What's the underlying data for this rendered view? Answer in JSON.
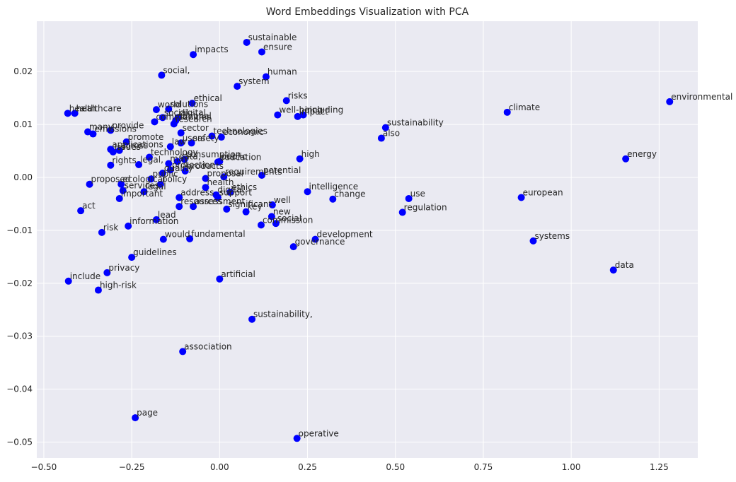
{
  "chart_data": {
    "type": "scatter",
    "title": "Word Embeddings Visualization with PCA",
    "xlabel": "",
    "ylabel": "",
    "xlim": [
      -0.52,
      1.36
    ],
    "ylim": [
      -0.053,
      0.0295
    ],
    "x_ticks": [
      {
        "value": -0.5,
        "label": "−0.50"
      },
      {
        "value": -0.25,
        "label": "−0.25"
      },
      {
        "value": 0.0,
        "label": "0.00"
      },
      {
        "value": 0.25,
        "label": "0.25"
      },
      {
        "value": 0.5,
        "label": "0.50"
      },
      {
        "value": 0.75,
        "label": "0.75"
      },
      {
        "value": 1.0,
        "label": "1.00"
      },
      {
        "value": 1.25,
        "label": "1.25"
      }
    ],
    "y_ticks": [
      {
        "value": 0.02,
        "label": "0.02"
      },
      {
        "value": 0.01,
        "label": "0.01"
      },
      {
        "value": 0.0,
        "label": "0.00"
      },
      {
        "value": -0.01,
        "label": "−0.01"
      },
      {
        "value": -0.02,
        "label": "−0.02"
      },
      {
        "value": -0.03,
        "label": "−0.03"
      },
      {
        "value": -0.04,
        "label": "−0.04"
      },
      {
        "value": -0.05,
        "label": "−0.05"
      }
    ],
    "grid": true,
    "colors": {
      "background": "#eaeaf2",
      "grid": "#ffffff",
      "point": "#0000ff",
      "text": "#262626"
    },
    "points": [
      {
        "label": "sustainable",
        "x": 0.077,
        "y": 0.0255
      },
      {
        "label": "ensure",
        "x": 0.12,
        "y": 0.0237
      },
      {
        "label": "impacts",
        "x": -0.075,
        "y": 0.0232
      },
      {
        "label": "social,",
        "x": -0.165,
        "y": 0.0193
      },
      {
        "label": "human",
        "x": 0.132,
        "y": 0.019
      },
      {
        "label": "system",
        "x": 0.05,
        "y": 0.0172
      },
      {
        "label": "risks",
        "x": 0.19,
        "y": 0.0145
      },
      {
        "label": "ethical",
        "x": -0.078,
        "y": 0.014
      },
      {
        "label": "environmental",
        "x": 1.28,
        "y": 0.0143
      },
      {
        "label": "climate",
        "x": 0.818,
        "y": 0.0123
      },
      {
        "label": "health",
        "x": -0.432,
        "y": 0.0121
      },
      {
        "label": "healthcare",
        "x": -0.412,
        "y": 0.0121
      },
      {
        "label": "world",
        "x": -0.18,
        "y": 0.0128
      },
      {
        "label": "solutions",
        "x": -0.145,
        "y": 0.0129
      },
      {
        "label": "well-being",
        "x": 0.165,
        "y": 0.0118
      },
      {
        "label": "impact",
        "x": 0.222,
        "y": 0.0115
      },
      {
        "label": "including",
        "x": 0.238,
        "y": 0.0118
      },
      {
        "label": "social",
        "x": -0.162,
        "y": 0.0113
      },
      {
        "label": "digital",
        "x": -0.118,
        "y": 0.0113
      },
      {
        "label": "national",
        "x": -0.125,
        "y": 0.0107
      },
      {
        "label": "communities",
        "x": -0.185,
        "y": 0.0105
      },
      {
        "label": "research",
        "x": -0.13,
        "y": 0.0101
      },
      {
        "label": "sustainability",
        "x": 0.472,
        "y": 0.0094
      },
      {
        "label": "sector",
        "x": -0.11,
        "y": 0.0084
      },
      {
        "label": "many",
        "x": -0.375,
        "y": 0.0086
      },
      {
        "label": "emissions",
        "x": -0.36,
        "y": 0.0082
      },
      {
        "label": "provide",
        "x": -0.31,
        "y": 0.0089
      },
      {
        "label": "technologies",
        "x": -0.022,
        "y": 0.0078
      },
      {
        "label": "economic",
        "x": 0.005,
        "y": 0.0076
      },
      {
        "label": "also",
        "x": 0.46,
        "y": 0.0074
      },
      {
        "label": "promote",
        "x": -0.265,
        "y": 0.0067
      },
      {
        "label": "users",
        "x": -0.11,
        "y": 0.0065
      },
      {
        "label": "safety",
        "x": -0.08,
        "y": 0.0065
      },
      {
        "label": "law",
        "x": -0.14,
        "y": 0.0058
      },
      {
        "label": "applications",
        "x": -0.31,
        "y": 0.0053
      },
      {
        "label": "across",
        "x": -0.285,
        "y": 0.0051
      },
      {
        "label": "issues",
        "x": -0.303,
        "y": 0.0048
      },
      {
        "label": "technology",
        "x": -0.2,
        "y": 0.0038
      },
      {
        "label": "consumption",
        "x": -0.1,
        "y": 0.0034
      },
      {
        "label": "energy",
        "x": 1.155,
        "y": 0.0035
      },
      {
        "label": "high",
        "x": 0.228,
        "y": 0.0035
      },
      {
        "label": "education",
        "x": -0.005,
        "y": 0.0029
      },
      {
        "label": "public",
        "x": 0.0,
        "y": 0.003
      },
      {
        "label": "rights",
        "x": -0.31,
        "y": 0.0023
      },
      {
        "label": "legal,",
        "x": -0.23,
        "y": 0.0024
      },
      {
        "label": "data,",
        "x": -0.12,
        "y": 0.003
      },
      {
        "label": "may",
        "x": -0.145,
        "y": 0.0026
      },
      {
        "label": "protection",
        "x": -0.14,
        "y": 0.0014
      },
      {
        "label": "products",
        "x": -0.098,
        "y": 0.0012
      },
      {
        "label": "quality",
        "x": -0.162,
        "y": 0.0008
      },
      {
        "label": "potential",
        "x": 0.12,
        "y": 0.0004
      },
      {
        "label": "requirements",
        "x": 0.012,
        "y": 0.0001
      },
      {
        "label": "proposal",
        "x": -0.04,
        "y": -0.0002
      },
      {
        "label": "public",
        "x": -0.195,
        "y": -0.0003
      },
      {
        "label": "proposed",
        "x": -0.37,
        "y": -0.0013
      },
      {
        "label": "ecological",
        "x": -0.28,
        "y": -0.0013
      },
      {
        "label": "policy",
        "x": -0.168,
        "y": -0.0013
      },
      {
        "label": "health",
        "x": -0.04,
        "y": -0.0019
      },
      {
        "label": "services",
        "x": -0.275,
        "y": -0.0025
      },
      {
        "label": "legal",
        "x": -0.215,
        "y": -0.0027
      },
      {
        "label": "intelligence",
        "x": 0.25,
        "y": -0.0027
      },
      {
        "label": "ethics",
        "x": 0.03,
        "y": -0.0028
      },
      {
        "label": "digital",
        "x": -0.01,
        "y": -0.0033
      },
      {
        "label": "support",
        "x": -0.005,
        "y": -0.0038
      },
      {
        "label": "important",
        "x": -0.285,
        "y": -0.004
      },
      {
        "label": "address",
        "x": -0.115,
        "y": -0.0038
      },
      {
        "label": "change",
        "x": 0.322,
        "y": -0.0041
      },
      {
        "label": "use",
        "x": 0.538,
        "y": -0.004
      },
      {
        "label": "european",
        "x": 0.858,
        "y": -0.0038
      },
      {
        "label": "well",
        "x": 0.15,
        "y": -0.0052
      },
      {
        "label": "resources",
        "x": -0.115,
        "y": -0.0055
      },
      {
        "label": "assessment",
        "x": -0.075,
        "y": -0.0055
      },
      {
        "label": "significant",
        "x": 0.02,
        "y": -0.006
      },
      {
        "label": "key",
        "x": 0.075,
        "y": -0.0065
      },
      {
        "label": "act",
        "x": -0.395,
        "y": -0.0063
      },
      {
        "label": "regulation",
        "x": 0.52,
        "y": -0.0066
      },
      {
        "label": "new",
        "x": 0.148,
        "y": -0.0074
      },
      {
        "label": "lead",
        "x": -0.18,
        "y": -0.008
      },
      {
        "label": "social",
        "x": 0.16,
        "y": -0.0087
      },
      {
        "label": "commission",
        "x": 0.118,
        "y": -0.009
      },
      {
        "label": "information",
        "x": -0.26,
        "y": -0.0092
      },
      {
        "label": "risk",
        "x": -0.335,
        "y": -0.0104
      },
      {
        "label": "development",
        "x": 0.272,
        "y": -0.0117
      },
      {
        "label": "would",
        "x": -0.16,
        "y": -0.0117
      },
      {
        "label": "fundamental",
        "x": -0.085,
        "y": -0.0116
      },
      {
        "label": "systems",
        "x": 0.892,
        "y": -0.012
      },
      {
        "label": "governance",
        "x": 0.21,
        "y": -0.0131
      },
      {
        "label": "guidelines",
        "x": -0.25,
        "y": -0.0151
      },
      {
        "label": "data",
        "x": 1.12,
        "y": -0.0175
      },
      {
        "label": "privacy",
        "x": -0.32,
        "y": -0.018
      },
      {
        "label": "include",
        "x": -0.43,
        "y": -0.0196
      },
      {
        "label": "artificial",
        "x": 0.0,
        "y": -0.0192
      },
      {
        "label": "high-risk",
        "x": -0.345,
        "y": -0.0213
      },
      {
        "label": "sustainability,",
        "x": 0.092,
        "y": -0.0268
      },
      {
        "label": "association",
        "x": -0.105,
        "y": -0.0329
      },
      {
        "label": "page",
        "x": -0.24,
        "y": -0.0454
      },
      {
        "label": "operative",
        "x": 0.22,
        "y": -0.0493
      }
    ]
  }
}
